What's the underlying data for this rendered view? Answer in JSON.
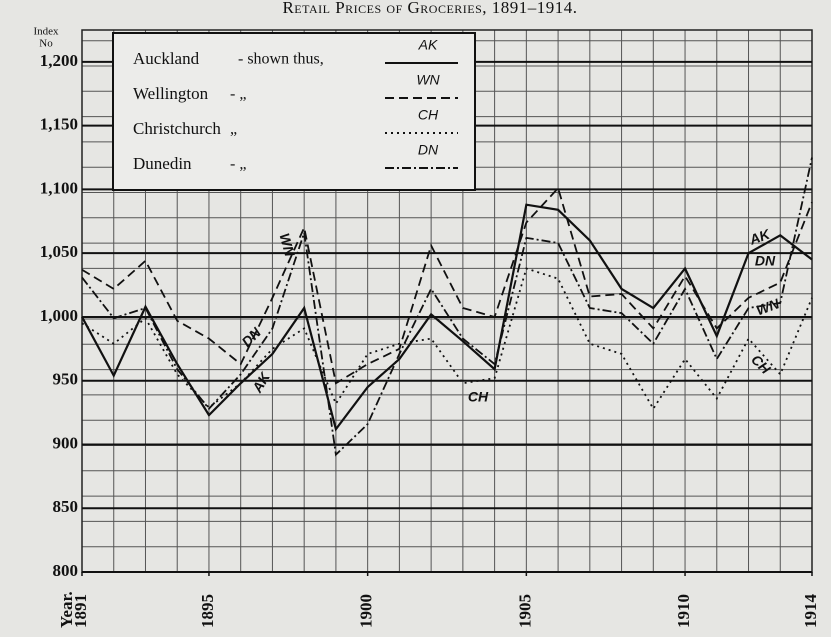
{
  "chart_data": {
    "type": "line",
    "title": "Retail Prices of Groceries, 1891–1914.",
    "y_label": [
      "Index",
      "No"
    ],
    "x_label": "Year.",
    "x": [
      1891,
      1892,
      1893,
      1894,
      1895,
      1896,
      1897,
      1898,
      1899,
      1900,
      1901,
      1902,
      1903,
      1904,
      1905,
      1906,
      1907,
      1908,
      1909,
      1910,
      1911,
      1912,
      1913,
      1914
    ],
    "xlim": [
      1891,
      1914
    ],
    "xticks": [
      1891,
      1895,
      1900,
      1905,
      1910,
      1914
    ],
    "ylim": [
      800,
      1225
    ],
    "yticks": [
      {
        "value": 1200,
        "label": "1,200"
      },
      {
        "value": 1150,
        "label": "1,150"
      },
      {
        "value": 1100,
        "label": "1,100"
      },
      {
        "value": 1050,
        "label": "1,050"
      },
      {
        "value": 1000,
        "label": "1,000"
      },
      950,
      900,
      850,
      800
    ],
    "grid": true,
    "series": [
      {
        "name": "Auckland",
        "note": "- shown thus,",
        "code": "AK",
        "color": "#111111",
        "line_style": "solid",
        "values": [
          1000,
          954,
          1008,
          963,
          923,
          948,
          971,
          1007,
          912,
          945,
          967,
          1002,
          981,
          959,
          1088,
          1084,
          1060,
          1022,
          1007,
          1038,
          985,
          1050,
          1064,
          1045
        ]
      },
      {
        "name": "Wellington",
        "note": "- „",
        "code": "WN",
        "color": "#111111",
        "line_style": "dashed",
        "values": [
          1037,
          1022,
          1044,
          997,
          983,
          963,
          1015,
          1070,
          948,
          963,
          975,
          1056,
          1007,
          1000,
          1074,
          1101,
          1016,
          1018,
          991,
          1032,
          991,
          1015,
          1027,
          1090
        ]
      },
      {
        "name": "Christchurch",
        "note": "„",
        "code": "CH",
        "color": "#111111",
        "line_style": "dotted",
        "values": [
          995,
          979,
          999,
          955,
          929,
          948,
          975,
          991,
          932,
          971,
          979,
          983,
          948,
          952,
          1038,
          1030,
          979,
          971,
          928,
          967,
          936,
          983,
          955,
          1015
        ]
      },
      {
        "name": "Dunedin",
        "note": "- „",
        "code": "DN",
        "color": "#111111",
        "line_style": "dashdot",
        "values": [
          1031,
          999,
          1007,
          959,
          928,
          955,
          991,
          1066,
          892,
          916,
          971,
          1022,
          983,
          963,
          1062,
          1058,
          1007,
          1003,
          979,
          1022,
          967,
          1007,
          1011,
          1125
        ]
      }
    ],
    "annotations": [
      "AK",
      "WN",
      "DN",
      "CH",
      "AK",
      "DN",
      "WN",
      "CH"
    ]
  }
}
